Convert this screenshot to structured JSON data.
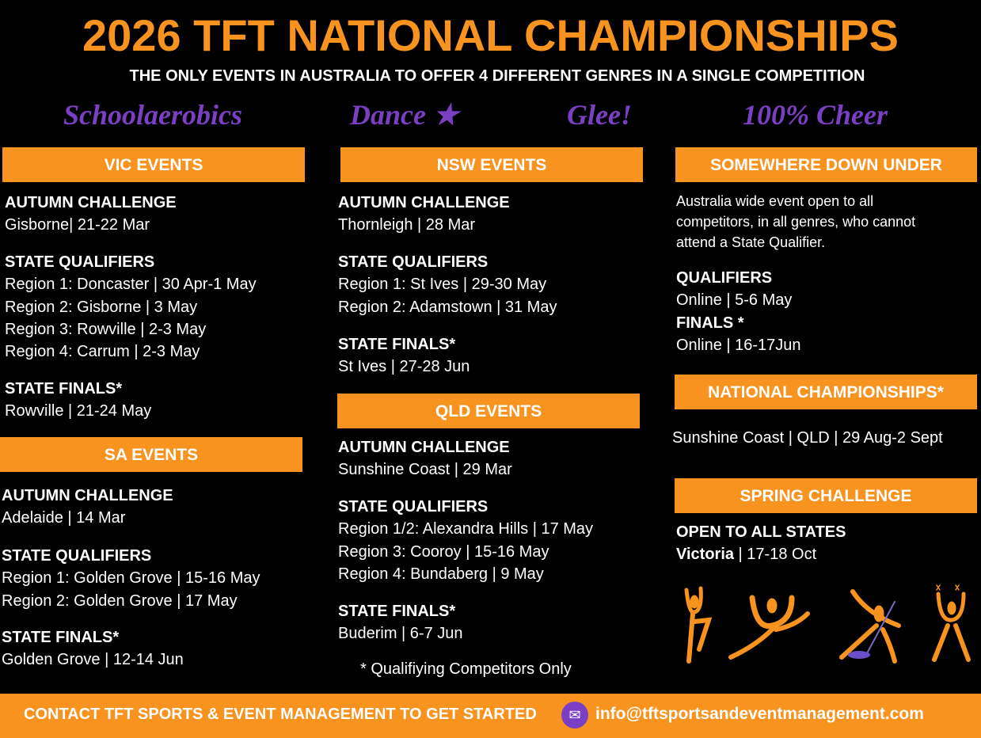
{
  "title": "2026 TFT NATIONAL CHAMPIONSHIPS",
  "subtitle": "THE ONLY EVENTS IN AUSTRALIA TO OFFER 4 DIFFERENT GENRES IN A SINGLE COMPETITION",
  "genres": [
    "Schoolaerobics",
    "Dance",
    "Glee!",
    "100% Cheer"
  ],
  "colors": {
    "accent": "#f7931e",
    "purple": "#7b3fc4",
    "background": "#000000"
  },
  "vic": {
    "header": "VIC EVENTS",
    "autumn_h": "AUTUMN CHALLENGE",
    "autumn": "Gisborne| 21-22 Mar",
    "quals_h": "STATE QUALIFIERS",
    "quals": [
      "Region 1: Doncaster | 30 Apr-1 May",
      "Region 2: Gisborne | 3 May",
      "Region 3: Rowville | 2-3 May",
      "Region 4: Carrum | 2-3 May"
    ],
    "finals_h": "STATE FINALS*",
    "finals": "Rowville | 21-24 May"
  },
  "sa": {
    "header": "SA EVENTS",
    "autumn_h": "AUTUMN CHALLENGE",
    "autumn": "Adelaide | 14 Mar",
    "quals_h": "STATE QUALIFIERS",
    "quals": [
      "Region 1: Golden Grove | 15-16 May",
      "Region 2: Golden Grove | 17 May"
    ],
    "finals_h": "STATE FINALS*",
    "finals": "Golden Grove | 12-14 Jun"
  },
  "nsw": {
    "header": "NSW EVENTS",
    "autumn_h": "AUTUMN CHALLENGE",
    "autumn": "Thornleigh | 28 Mar",
    "quals_h": "STATE QUALIFIERS",
    "quals": [
      "Region 1: St Ives | 29-30 May",
      "Region 2: Adamstown | 31 May"
    ],
    "finals_h": "STATE FINALS*",
    "finals": "St Ives | 27-28 Jun"
  },
  "qld": {
    "header": "QLD EVENTS",
    "autumn_h": "AUTUMN CHALLENGE",
    "autumn": "Sunshine Coast | 29 Mar",
    "quals_h": "STATE QUALIFIERS",
    "quals": [
      "Region 1/2: Alexandra Hills | 17 May",
      "Region 3: Cooroy | 15-16 May",
      "Region 4: Bundaberg | 9 May"
    ],
    "finals_h": "STATE FINALS*",
    "finals": "Buderim | 6-7 Jun"
  },
  "footnote": "* Qualifiying Competitors Only",
  "sdu": {
    "header": "SOMEWHERE DOWN UNDER",
    "desc": [
      "Australia wide event open to all",
      "competitors, in all genres, who cannot",
      "attend a State Qualifier."
    ],
    "quals_h": "QUALIFIERS",
    "quals": "Online | 5-6 May",
    "finals_h": "FINALS *",
    "finals": "Online | 16-17Jun"
  },
  "national": {
    "header": "NATIONAL CHAMPIONSHIPS*",
    "text": "Sunshine Coast | QLD | 29 Aug-2 Sept"
  },
  "spring": {
    "header": "SPRING CHALLENGE",
    "sub_h": "OPEN TO ALL STATES",
    "place": "Victoria",
    "dates": " | 17-18 Oct"
  },
  "footer": {
    "contact": "CONTACT TFT SPORTS & EVENT MANAGEMENT TO GET STARTED",
    "email": "info@tftsportsandeventmanagement.com",
    "mail_icon": "envelope-icon"
  }
}
